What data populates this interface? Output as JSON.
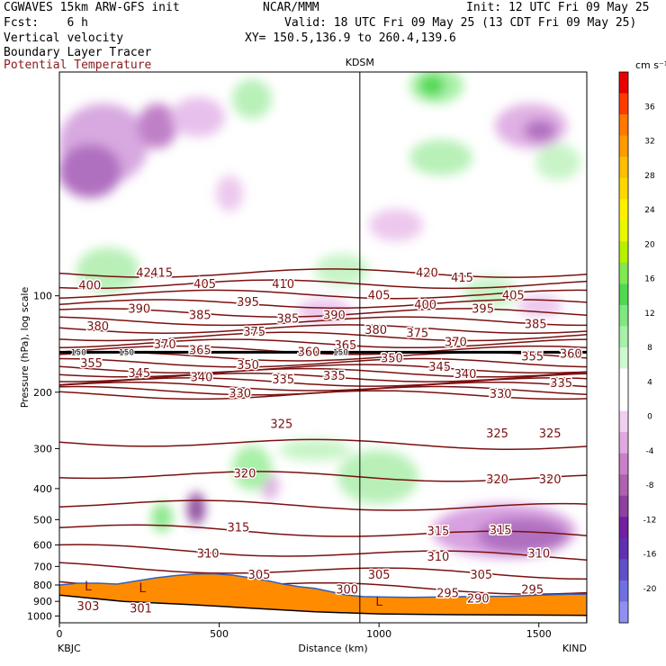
{
  "header": {
    "model": "CGWAVES 15km ARW-GFS init",
    "org": "NCAR/MMM",
    "init": "Init: 12 UTC Fri 09 May 25",
    "fcst": "Fcst:    6 h",
    "valid": "Valid: 18 UTC Fri 09 May 25 (13 CDT Fri 09 May 25)",
    "xy": "XY= 150.5,136.9 to 260.4,139.6",
    "field1": "Vertical velocity",
    "field2": "Boundary Layer Tracer",
    "field3": "Potential Temperature"
  },
  "colors": {
    "theta": "#7a1010",
    "field3_text": "#8b1a1a",
    "terrain": "#ff8c00"
  },
  "chart_data": {
    "type": "cross-section",
    "xlabel": "Distance (km)",
    "ylabel": "Pressure (hPa), log scale",
    "xlim": [
      0,
      1650
    ],
    "ylim_hpa": [
      1050,
      20
    ],
    "y_scale": "log",
    "x_ticks": [
      0,
      500,
      1000,
      1500
    ],
    "y_ticks": [
      100,
      200,
      300,
      400,
      500,
      600,
      700,
      800,
      900,
      1000
    ],
    "endpoints": {
      "left": "KBJC",
      "right": "KIND"
    },
    "marker": {
      "label": "KDSM",
      "x_km": 940
    },
    "colorbar": {
      "unit": "cm s⁻¹",
      "labels": [
        36,
        32,
        28,
        24,
        20,
        16,
        12,
        8,
        4,
        0,
        -4,
        -8,
        -12,
        -16,
        -20
      ],
      "colors": [
        "#e80000",
        "#ff3c00",
        "#ff7800",
        "#ff9a00",
        "#ffbe00",
        "#ffd800",
        "#fff000",
        "#e8f800",
        "#b8f000",
        "#80e850",
        "#50d850",
        "#80e880",
        "#a8f0a8",
        "#d0f8d0",
        "#ffffff",
        "#ffffff",
        "#f0d0f0",
        "#e0a8e0",
        "#c880c8",
        "#b060b0",
        "#9040a0",
        "#7020a0",
        "#6030b0",
        "#6050c8",
        "#7070e0",
        "#9090f0"
      ]
    },
    "theta_labels": [
      {
        "v": "420",
        "x": 275,
        "p": 85
      },
      {
        "v": "420",
        "x": 1150,
        "p": 85
      },
      {
        "v": "415",
        "x": 320,
        "p": 85
      },
      {
        "v": "415",
        "x": 1260,
        "p": 88
      },
      {
        "v": "410",
        "x": 700,
        "p": 92
      },
      {
        "v": "405",
        "x": 455,
        "p": 92
      },
      {
        "v": "405",
        "x": 1000,
        "p": 100
      },
      {
        "v": "405",
        "x": 1420,
        "p": 100
      },
      {
        "v": "400",
        "x": 95,
        "p": 93
      },
      {
        "v": "400",
        "x": 1145,
        "p": 107
      },
      {
        "v": "395",
        "x": 590,
        "p": 105
      },
      {
        "v": "395",
        "x": 1325,
        "p": 110
      },
      {
        "v": "390",
        "x": 250,
        "p": 110
      },
      {
        "v": "390",
        "x": 860,
        "p": 115
      },
      {
        "v": "385",
        "x": 440,
        "p": 115
      },
      {
        "v": "385",
        "x": 715,
        "p": 118
      },
      {
        "v": "385",
        "x": 1490,
        "p": 123
      },
      {
        "v": "380",
        "x": 120,
        "p": 125
      },
      {
        "v": "380",
        "x": 990,
        "p": 128
      },
      {
        "v": "375",
        "x": 610,
        "p": 130
      },
      {
        "v": "375",
        "x": 1120,
        "p": 131
      },
      {
        "v": "370",
        "x": 330,
        "p": 142
      },
      {
        "v": "370",
        "x": 1240,
        "p": 140
      },
      {
        "v": "365",
        "x": 440,
        "p": 148
      },
      {
        "v": "365",
        "x": 895,
        "p": 143
      },
      {
        "v": "360",
        "x": 780,
        "p": 150
      },
      {
        "v": "360",
        "x": 1600,
        "p": 152
      },
      {
        "v": "355",
        "x": 100,
        "p": 163
      },
      {
        "v": "355",
        "x": 1480,
        "p": 155
      },
      {
        "v": "350",
        "x": 590,
        "p": 165
      },
      {
        "v": "350",
        "x": 1040,
        "p": 157
      },
      {
        "v": "345",
        "x": 250,
        "p": 175
      },
      {
        "v": "345",
        "x": 1190,
        "p": 167
      },
      {
        "v": "340",
        "x": 445,
        "p": 180
      },
      {
        "v": "340",
        "x": 1270,
        "p": 176
      },
      {
        "v": "335",
        "x": 700,
        "p": 183
      },
      {
        "v": "335",
        "x": 860,
        "p": 178
      },
      {
        "v": "335",
        "x": 1570,
        "p": 188
      },
      {
        "v": "330",
        "x": 565,
        "p": 202
      },
      {
        "v": "330",
        "x": 1380,
        "p": 203
      },
      {
        "v": "325",
        "x": 695,
        "p": 252
      },
      {
        "v": "325",
        "x": 1370,
        "p": 270
      },
      {
        "v": "325",
        "x": 1535,
        "p": 270
      },
      {
        "v": "320",
        "x": 580,
        "p": 360
      },
      {
        "v": "320",
        "x": 1370,
        "p": 375
      },
      {
        "v": "320",
        "x": 1535,
        "p": 375
      },
      {
        "v": "315",
        "x": 560,
        "p": 530
      },
      {
        "v": "315",
        "x": 1185,
        "p": 545
      },
      {
        "v": "315",
        "x": 1380,
        "p": 540
      },
      {
        "v": "310",
        "x": 465,
        "p": 640
      },
      {
        "v": "310",
        "x": 1185,
        "p": 655
      },
      {
        "v": "310",
        "x": 1500,
        "p": 640
      },
      {
        "v": "305",
        "x": 625,
        "p": 745
      },
      {
        "v": "305",
        "x": 1000,
        "p": 745
      },
      {
        "v": "305",
        "x": 1320,
        "p": 745
      },
      {
        "v": "300",
        "x": 900,
        "p": 830
      },
      {
        "v": "295",
        "x": 1215,
        "p": 850
      },
      {
        "v": "295",
        "x": 1480,
        "p": 830
      },
      {
        "v": "290",
        "x": 1310,
        "p": 885
      },
      {
        "v": "303",
        "x": 90,
        "p": 935
      },
      {
        "v": "301",
        "x": 255,
        "p": 950
      }
    ],
    "tracer_labels": [
      {
        "v": "150",
        "x": 60,
        "p": 150
      },
      {
        "v": "150",
        "x": 210,
        "p": 150
      },
      {
        "v": "150",
        "x": 880,
        "p": 150
      }
    ],
    "low_markers": [
      {
        "v": "L",
        "x": 90,
        "p": 810
      },
      {
        "v": "L",
        "x": 260,
        "p": 820
      },
      {
        "v": "L",
        "x": 1000,
        "p": 905
      }
    ],
    "terrain_p": [
      [
        0,
        800
      ],
      [
        60,
        790
      ],
      [
        120,
        790
      ],
      [
        180,
        795
      ],
      [
        230,
        780
      ],
      [
        300,
        760
      ],
      [
        360,
        748
      ],
      [
        420,
        740
      ],
      [
        480,
        738
      ],
      [
        540,
        745
      ],
      [
        600,
        760
      ],
      [
        650,
        775
      ],
      [
        700,
        795
      ],
      [
        750,
        810
      ],
      [
        800,
        820
      ],
      [
        850,
        840
      ],
      [
        900,
        860
      ],
      [
        950,
        870
      ],
      [
        1000,
        872
      ],
      [
        1100,
        875
      ],
      [
        1200,
        872
      ],
      [
        1300,
        868
      ],
      [
        1400,
        868
      ],
      [
        1500,
        860
      ],
      [
        1600,
        855
      ],
      [
        1650,
        855
      ]
    ]
  }
}
